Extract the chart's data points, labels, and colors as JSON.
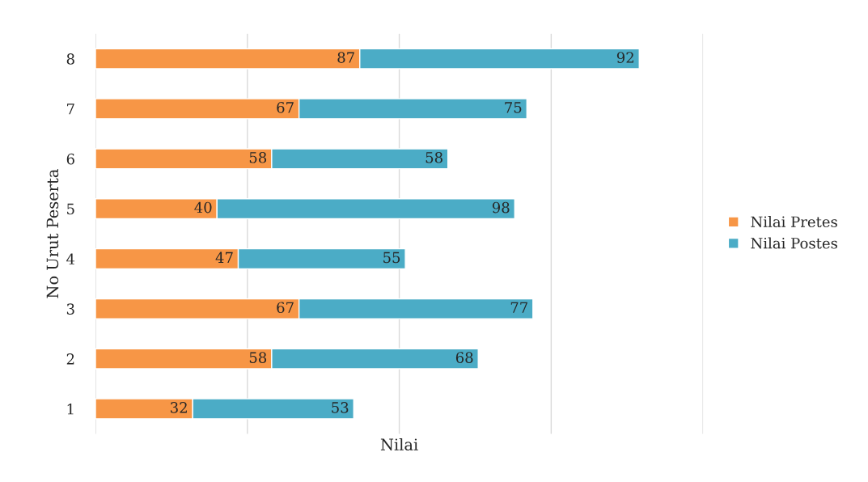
{
  "chart_data": {
    "type": "bar",
    "orientation": "horizontal",
    "stacked": true,
    "xlabel": "Nilai",
    "ylabel": "No Urut Peserta",
    "categories": [
      "8",
      "7",
      "6",
      "5",
      "4",
      "3",
      "2",
      "1"
    ],
    "series": [
      {
        "name": "Nilai Pretes",
        "color": "#f79646",
        "values": [
          87,
          67,
          58,
          40,
          47,
          67,
          58,
          32
        ]
      },
      {
        "name": "Nilai Postes",
        "color": "#4bacc6",
        "values": [
          92,
          75,
          58,
          98,
          55,
          77,
          68,
          53
        ]
      }
    ],
    "xlim": [
      0,
      200
    ],
    "xticks": [
      {
        "value": 0,
        "label": null
      },
      {
        "value": 50,
        "label": null
      },
      {
        "value": 100,
        "label": null
      },
      {
        "value": 150,
        "label": null
      },
      {
        "value": 200,
        "label": null
      }
    ],
    "tick_labels": "y",
    "grid": "x",
    "legend": "right",
    "data_labels": true
  }
}
